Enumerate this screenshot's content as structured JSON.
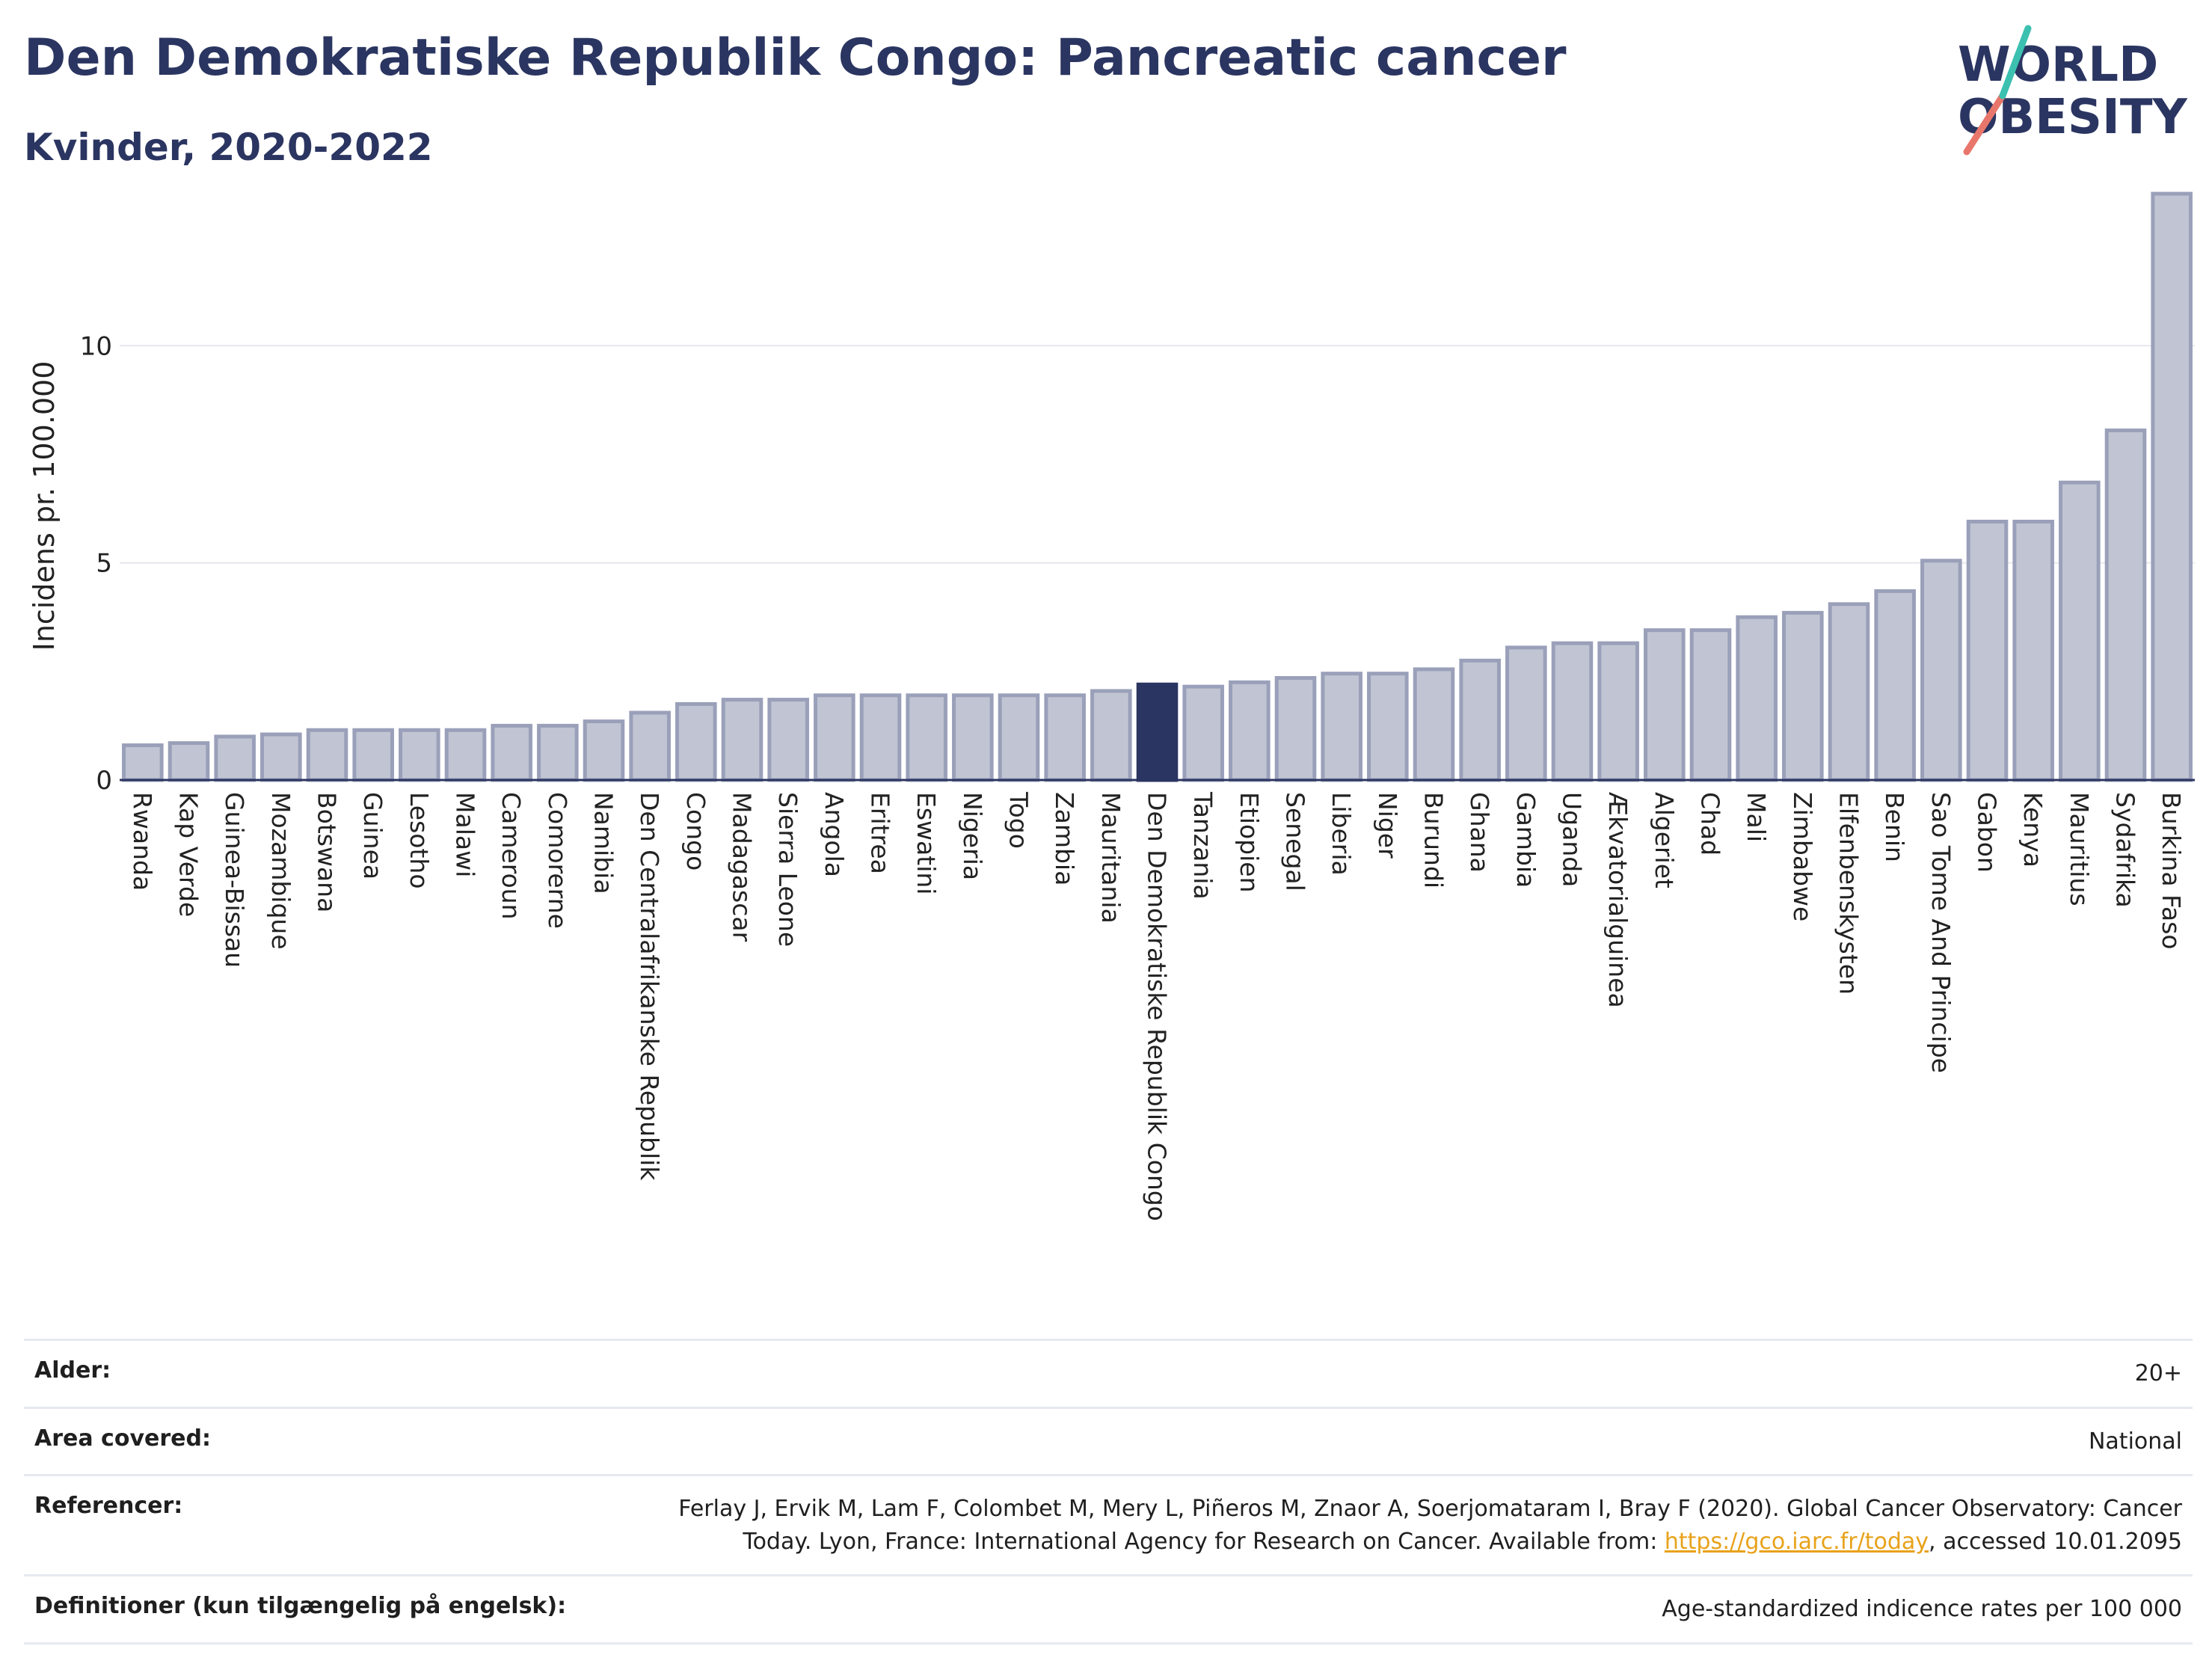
{
  "title": "Den Demokratiske Republik Congo: Pancreatic cancer",
  "subtitle": "Kvinder, 2020-2022",
  "logo": {
    "line1": "WORLD",
    "line2": "OBESITY"
  },
  "colors": {
    "bar": "#c1c5d3",
    "bar_border": "#9aa0b9",
    "highlight": "#2b3561",
    "title": "#2b3561",
    "link": "#e8a21a"
  },
  "chart_data": {
    "type": "bar",
    "ylabel": "Incidens pr. 100.000",
    "xlabel": "",
    "ylim": [
      0,
      14
    ],
    "yticks": [
      0,
      5,
      10
    ],
    "grid": true,
    "highlight": "Den Demokratiske Republik Congo",
    "categories": [
      "Rwanda",
      "Kap Verde",
      "Guinea-Bissau",
      "Mozambique",
      "Botswana",
      "Guinea",
      "Lesotho",
      "Malawi",
      "Cameroun",
      "Comorerne",
      "Namibia",
      "Den Centralafrikanske Republik",
      "Congo",
      "Madagascar",
      "Sierra Leone",
      "Angola",
      "Eritrea",
      "Eswatini",
      "Nigeria",
      "Togo",
      "Zambia",
      "Mauritania",
      "Den Demokratiske Republik Congo",
      "Tanzania",
      "Etiopien",
      "Senegal",
      "Liberia",
      "Niger",
      "Burundi",
      "Ghana",
      "Gambia",
      "Uganda",
      "Ækvatorialguinea",
      "Algeriet",
      "Chad",
      "Mali",
      "Zimbabwe",
      "Elfenbenskysten",
      "Benin",
      "Sao Tome And Principe",
      "Gabon",
      "Kenya",
      "Mauritius",
      "Sydafrika",
      "Burkina Faso"
    ],
    "values": [
      0.8,
      0.85,
      1.0,
      1.05,
      1.15,
      1.15,
      1.15,
      1.15,
      1.25,
      1.25,
      1.35,
      1.55,
      1.75,
      1.85,
      1.85,
      1.95,
      1.95,
      1.95,
      1.95,
      1.95,
      1.95,
      2.05,
      2.2,
      2.15,
      2.25,
      2.35,
      2.45,
      2.45,
      2.55,
      2.75,
      3.05,
      3.15,
      3.15,
      3.45,
      3.45,
      3.75,
      3.85,
      4.05,
      4.35,
      5.05,
      5.95,
      5.95,
      6.85,
      8.05,
      13.5
    ]
  },
  "meta": {
    "age_label": "Alder:",
    "age_value": "20+",
    "area_label": "Area covered:",
    "area_value": "National",
    "ref_label": "Referencer:",
    "ref_text": "Ferlay J, Ervik M, Lam F, Colombet M, Mery L, Piñeros M, Znaor A, Soerjomataram I, Bray F (2020). Global Cancer Observatory: Cancer Today. Lyon, France: International Agency for Research on Cancer. Available from: ",
    "ref_link": "https://gco.iarc.fr/today",
    "ref_suffix": ", accessed 10.01.2095",
    "def_label": "Definitioner (kun tilgængelig på engelsk):",
    "def_value": "Age-standardized indicence rates per 100 000"
  }
}
